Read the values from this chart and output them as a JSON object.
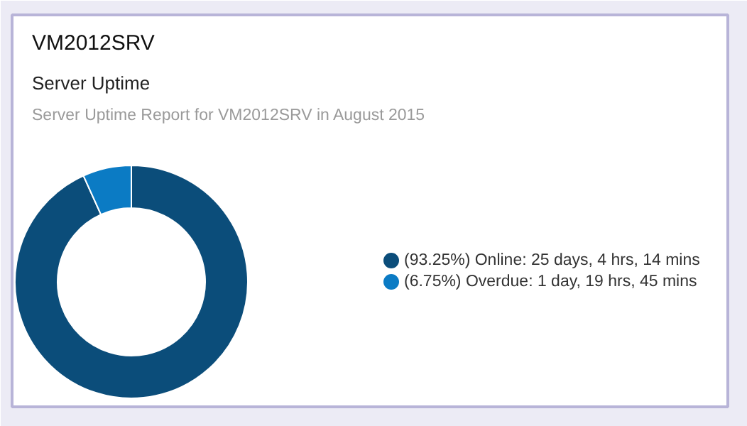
{
  "chart_data": {
    "type": "donut",
    "title": "VM2012SRV",
    "subtitle": "Server Uptime",
    "annotations": [
      "Server Uptime Report for VM2012SRV in August 2015"
    ],
    "categories": [
      "(93.25%) Online: 25 days, 4 hrs, 14 mins",
      "(6.75%) Overdue: 1 day, 19 hrs, 45 mins"
    ],
    "values": [
      93.25,
      6.75
    ],
    "colors": [
      "#0b4d7a",
      "#0b7bc4"
    ],
    "legend": "right"
  }
}
